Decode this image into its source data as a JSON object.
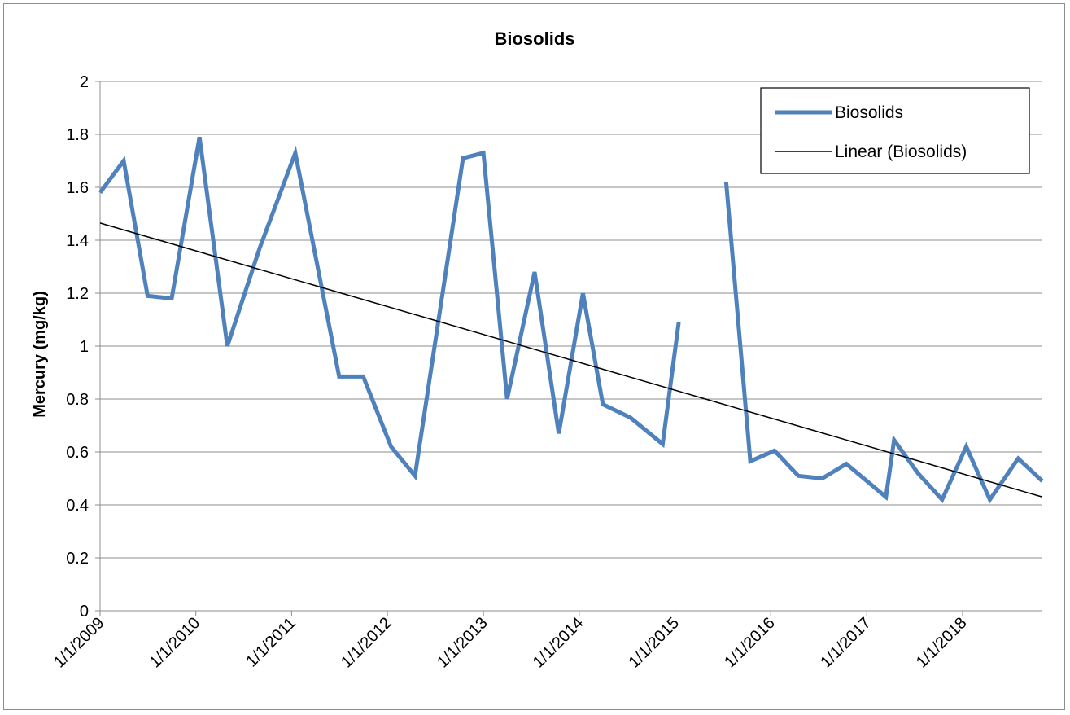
{
  "chart_data": {
    "type": "line",
    "title": "Biosolids",
    "xlabel": "",
    "ylabel": "Mercury (mg/kg)",
    "ylim": [
      0,
      2
    ],
    "yticks": [
      "0",
      "0.2",
      "0.4",
      "0.6",
      "0.8",
      "1",
      "1.2",
      "1.4",
      "1.6",
      "1.8",
      "2"
    ],
    "xlim": [
      "2009-01-01",
      "2018-11-01"
    ],
    "xticks": [
      "1/1/2009",
      "1/1/2010",
      "1/1/2011",
      "1/1/2012",
      "1/1/2013",
      "1/1/2014",
      "1/1/2015",
      "1/1/2016",
      "1/1/2017",
      "1/1/2018"
    ],
    "grid": "horizontal",
    "legend": {
      "placement": "top-right"
    },
    "colors": {
      "series": "#4f81bd",
      "trend": "#000000"
    },
    "series": [
      {
        "name": "Biosolids",
        "segments": [
          [
            [
              "2009-01-01",
              1.58
            ],
            [
              "2009-04-01",
              1.7
            ],
            [
              "2009-07-01",
              1.19
            ],
            [
              "2009-10-01",
              1.18
            ],
            [
              "2010-01-15",
              1.79
            ],
            [
              "2010-05-01",
              1.0
            ],
            [
              "2010-09-01",
              1.37
            ],
            [
              "2011-01-15",
              1.73
            ],
            [
              "2011-07-01",
              0.885
            ],
            [
              "2011-10-01",
              0.885
            ],
            [
              "2012-01-15",
              0.62
            ],
            [
              "2012-04-15",
              0.51
            ],
            [
              "2012-10-15",
              1.71
            ],
            [
              "2013-01-01",
              1.73
            ],
            [
              "2013-04-01",
              0.8
            ],
            [
              "2013-07-15",
              1.28
            ],
            [
              "2013-10-15",
              0.67
            ],
            [
              "2014-01-15",
              1.2
            ],
            [
              "2014-04-01",
              0.78
            ],
            [
              "2014-07-15",
              0.73
            ],
            [
              "2014-11-15",
              0.63
            ],
            [
              "2015-01-15",
              1.09
            ]
          ],
          [
            [
              "2015-07-15",
              1.62
            ],
            [
              "2015-10-15",
              0.565
            ],
            [
              "2016-01-15",
              0.605
            ],
            [
              "2016-04-15",
              0.51
            ],
            [
              "2016-07-15",
              0.5
            ],
            [
              "2016-10-15",
              0.555
            ],
            [
              "2017-03-15",
              0.43
            ],
            [
              "2017-04-15",
              0.645
            ],
            [
              "2017-07-15",
              0.52
            ],
            [
              "2017-10-15",
              0.42
            ],
            [
              "2018-01-15",
              0.62
            ],
            [
              "2018-04-15",
              0.42
            ],
            [
              "2018-08-01",
              0.575
            ],
            [
              "2018-11-01",
              0.49
            ]
          ]
        ]
      },
      {
        "name": "Linear (Biosolids)",
        "points": [
          [
            "2009-01-01",
            1.465
          ],
          [
            "2018-11-01",
            0.43
          ]
        ]
      }
    ]
  }
}
